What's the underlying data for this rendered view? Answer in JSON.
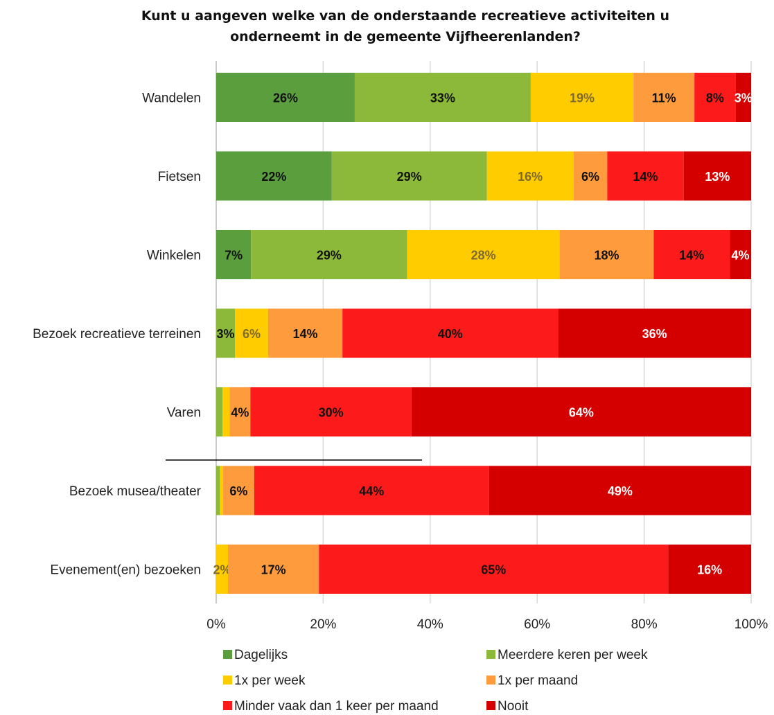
{
  "chart_data": {
    "type": "bar",
    "orientation": "horizontal",
    "stacked": "percent",
    "title_lines": [
      "Kunt u aangeven welke van de onderstaande recreatieve activiteiten u",
      "onderneemt in de gemeente Vijfheerenlanden?"
    ],
    "categories": [
      "Wandelen",
      "Fietsen",
      "Winkelen",
      "Bezoek recreatieve terreinen",
      "Varen",
      "Bezoek musea/theater",
      "Evenement(en) bezoeken"
    ],
    "series": [
      {
        "name": "Dagelijks",
        "color": "#5a9e3e",
        "values": [
          25.9,
          21.6,
          6.5,
          0.0,
          0.0,
          0.0,
          0.0
        ],
        "labels": [
          "26%",
          "22%",
          "7%",
          "",
          "",
          "",
          ""
        ],
        "label_color": "#111111"
      },
      {
        "name": "Meerdere keren per week",
        "color": "#8cb93a",
        "values": [
          32.9,
          29.0,
          29.2,
          3.5,
          1.2,
          0.7,
          0.0
        ],
        "labels": [
          "33%",
          "29%",
          "29%",
          "3%",
          "",
          "",
          ""
        ],
        "label_color": "#111111"
      },
      {
        "name": "1x per week",
        "color": "#ffcc00",
        "values": [
          19.2,
          16.2,
          28.5,
          6.2,
          1.3,
          0.6,
          2.2
        ],
        "labels": [
          "19%",
          "16%",
          "28%",
          "6%",
          "",
          "",
          "2%"
        ],
        "label_color": "#7f6a2e"
      },
      {
        "name": "1x per maand",
        "color": "#fd9b3d",
        "values": [
          11.4,
          6.3,
          17.6,
          13.9,
          3.9,
          5.8,
          17.0
        ],
        "labels": [
          "11%",
          "6%",
          "18%",
          "14%",
          "4%",
          "6%",
          "17%"
        ],
        "label_color": "#111111"
      },
      {
        "name": "Minder vaak dan 1 keer per maand",
        "color": "#fd1a1a",
        "values": [
          7.7,
          14.3,
          14.2,
          40.3,
          30.1,
          43.9,
          65.3
        ],
        "labels": [
          "8%",
          "14%",
          "14%",
          "40%",
          "30%",
          "44%",
          "65%"
        ],
        "label_color": "#111111"
      },
      {
        "name": "Nooit",
        "color": "#d40000",
        "values": [
          2.9,
          12.6,
          4.0,
          36.1,
          63.5,
          49.0,
          15.5
        ],
        "labels": [
          "3%",
          "13%",
          "4%",
          "36%",
          "64%",
          "49%",
          "16%"
        ],
        "label_color": "#ffffff"
      }
    ],
    "x_ticks": [
      "0%",
      "20%",
      "40%",
      "60%",
      "80%",
      "100%"
    ],
    "xlim": [
      0,
      100
    ],
    "grid": "vertical",
    "legend": {
      "placement": "bottom",
      "columns": 2
    }
  }
}
